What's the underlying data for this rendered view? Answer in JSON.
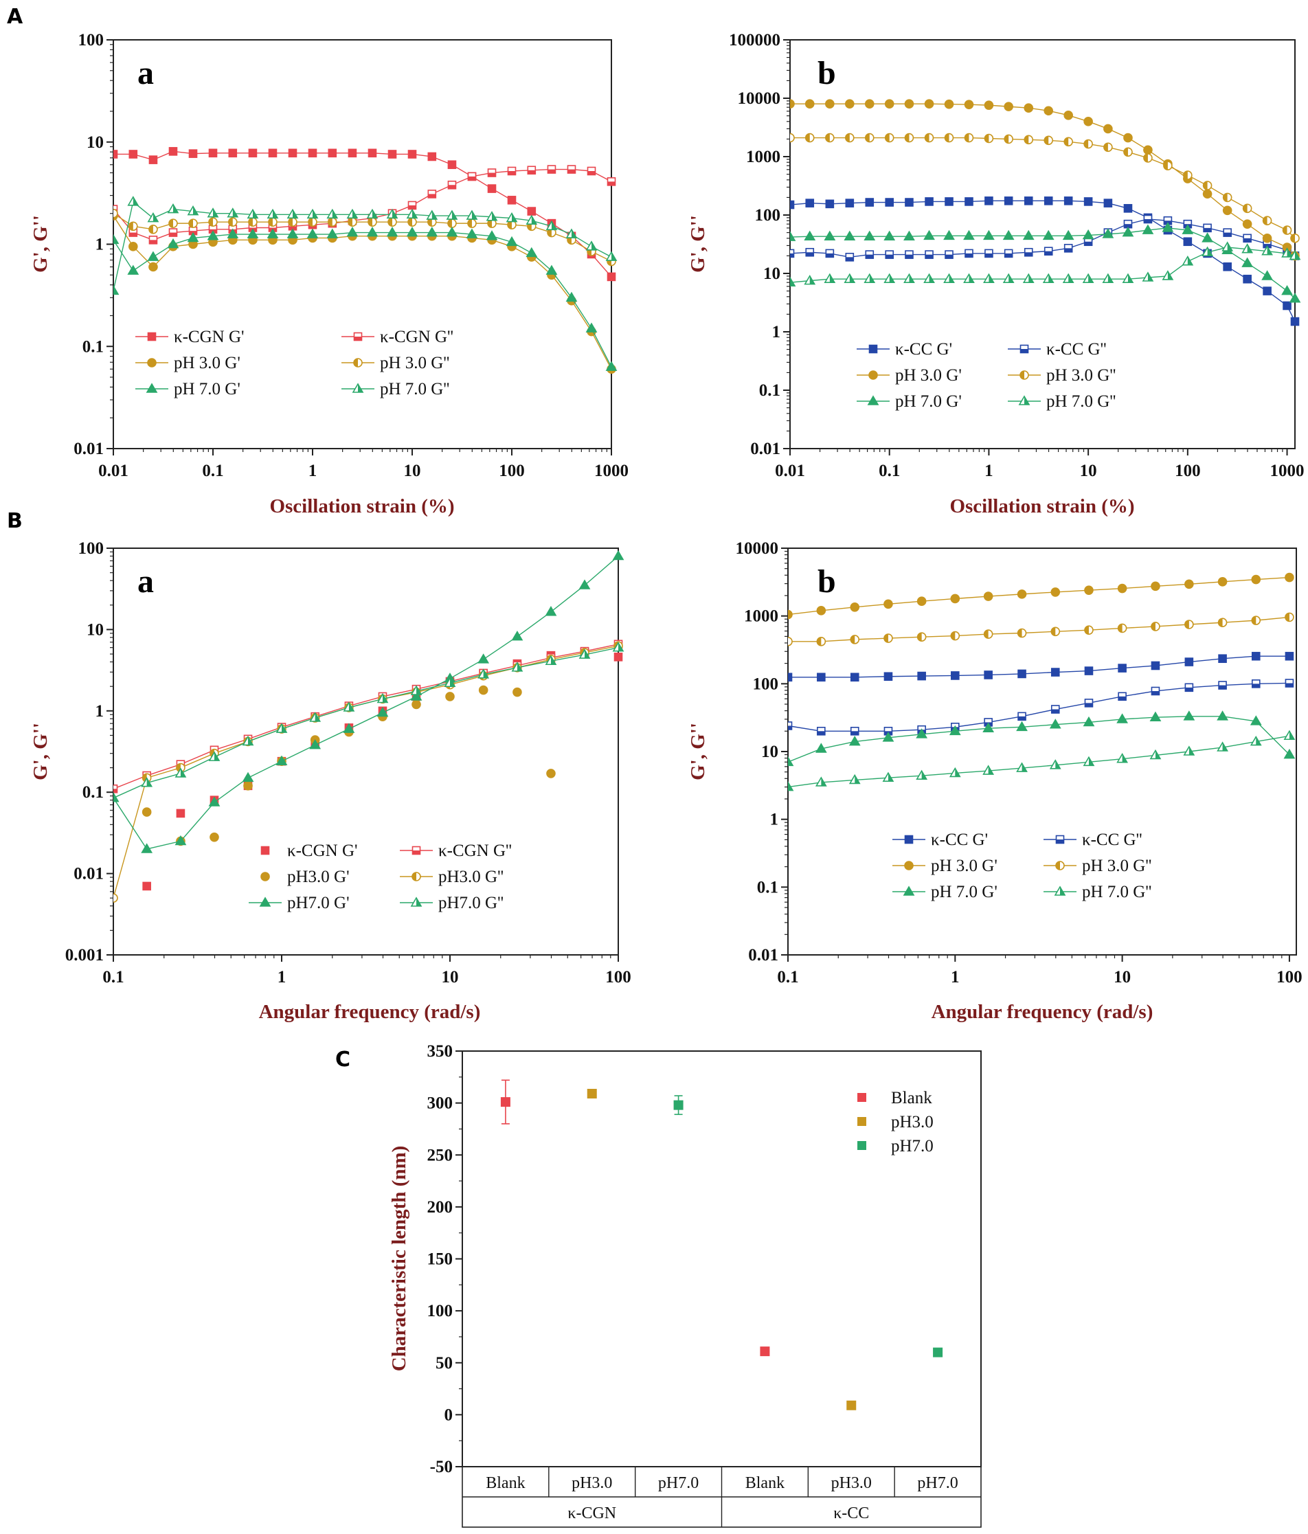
{
  "figure": {
    "labels": {
      "A": "A",
      "B": "B",
      "C": "C"
    },
    "sub_labels": {
      "a": "a",
      "b": "b"
    }
  },
  "colors": {
    "red": "#e8444c",
    "gold": "#c8961e",
    "green": "#2aa86a",
    "blue": "#2446a8",
    "axis_title": "#7b1d1d"
  },
  "chart_data": [
    {
      "id": "A_a",
      "type": "line",
      "panel": "A",
      "sub": "a",
      "xscale": "log",
      "yscale": "log",
      "xlim": [
        0.01,
        1000
      ],
      "ylim": [
        0.01,
        100
      ],
      "xticks": [
        0.01,
        0.1,
        1,
        10,
        100,
        1000
      ],
      "xtick_labels": [
        "0.01",
        "0.1",
        "1",
        "10",
        "100",
        "1000"
      ],
      "yticks": [
        0.01,
        0.1,
        1,
        10,
        100
      ],
      "ytick_labels": [
        "0.01",
        "0.1",
        "1",
        "10",
        "100"
      ],
      "xlabel": "Oscillation strain (%)",
      "ylabel": "G', G''",
      "legend_position": "bottom-center",
      "x": [
        0.01,
        0.0158,
        0.0251,
        0.0398,
        0.0631,
        0.1,
        0.158,
        0.251,
        0.398,
        0.631,
        1,
        1.58,
        2.51,
        3.98,
        6.31,
        10,
        15.8,
        25.1,
        39.8,
        63.1,
        100,
        158,
        251,
        398,
        631,
        1000
      ],
      "series": [
        {
          "name": "κ-CGN  G'",
          "color": "#e8444c",
          "marker": "square",
          "fill": "full",
          "values": [
            7.6,
            7.6,
            6.7,
            8.1,
            7.7,
            7.8,
            7.8,
            7.8,
            7.8,
            7.8,
            7.8,
            7.8,
            7.8,
            7.8,
            7.6,
            7.6,
            7.2,
            6.0,
            4.6,
            3.5,
            2.7,
            2.1,
            1.6,
            1.2,
            0.8,
            0.48
          ]
        },
        {
          "name": "κ-CGN  G''",
          "color": "#e8444c",
          "marker": "square",
          "fill": "half",
          "values": [
            2.2,
            1.3,
            1.1,
            1.3,
            1.35,
            1.4,
            1.4,
            1.45,
            1.45,
            1.5,
            1.55,
            1.6,
            1.7,
            1.8,
            2.0,
            2.4,
            3.1,
            3.8,
            4.6,
            5.0,
            5.2,
            5.3,
            5.4,
            5.4,
            5.2,
            4.1
          ]
        },
        {
          "name": "pH 3.0  G'",
          "color": "#c8961e",
          "marker": "circle",
          "fill": "full",
          "values": [
            1.9,
            0.95,
            0.6,
            0.95,
            1.0,
            1.05,
            1.1,
            1.1,
            1.1,
            1.1,
            1.15,
            1.15,
            1.2,
            1.2,
            1.2,
            1.2,
            1.2,
            1.2,
            1.15,
            1.1,
            0.95,
            0.75,
            0.5,
            0.28,
            0.14,
            0.06
          ]
        },
        {
          "name": "pH 3.0  G''",
          "color": "#c8961e",
          "marker": "circle",
          "fill": "half",
          "values": [
            2.0,
            1.5,
            1.4,
            1.6,
            1.6,
            1.65,
            1.65,
            1.65,
            1.65,
            1.65,
            1.65,
            1.65,
            1.65,
            1.65,
            1.65,
            1.65,
            1.65,
            1.6,
            1.6,
            1.6,
            1.55,
            1.5,
            1.3,
            1.1,
            0.85,
            0.68
          ]
        },
        {
          "name": "pH 7.0  G'",
          "color": "#2aa86a",
          "marker": "triangle",
          "fill": "full",
          "values": [
            1.1,
            0.55,
            0.75,
            1.0,
            1.15,
            1.2,
            1.25,
            1.25,
            1.25,
            1.25,
            1.25,
            1.25,
            1.3,
            1.3,
            1.3,
            1.3,
            1.3,
            1.3,
            1.25,
            1.2,
            1.05,
            0.82,
            0.55,
            0.3,
            0.15,
            0.063
          ]
        },
        {
          "name": "pH 7.0  G''",
          "color": "#2aa86a",
          "marker": "triangle",
          "fill": "half",
          "values": [
            0.35,
            2.6,
            1.8,
            2.2,
            2.1,
            2.0,
            2.0,
            1.95,
            1.95,
            1.95,
            1.95,
            1.95,
            1.95,
            1.95,
            1.95,
            1.95,
            1.9,
            1.9,
            1.9,
            1.85,
            1.8,
            1.7,
            1.5,
            1.25,
            0.95,
            0.75
          ]
        }
      ]
    },
    {
      "id": "A_b",
      "type": "line",
      "panel": "A",
      "sub": "b",
      "xscale": "log",
      "yscale": "log",
      "xlim": [
        0.01,
        1200
      ],
      "ylim": [
        0.01,
        100000
      ],
      "xticks": [
        0.01,
        0.1,
        1,
        10,
        100,
        1000
      ],
      "xtick_labels": [
        "0.01",
        "0.1",
        "1",
        "10",
        "100",
        "1000"
      ],
      "yticks": [
        0.01,
        0.1,
        1,
        10,
        100,
        1000,
        10000,
        100000
      ],
      "ytick_labels": [
        "0.01",
        "0.1",
        "1",
        "10",
        "100",
        "1000",
        "10000",
        "100000"
      ],
      "xlabel": "Oscillation strain (%)",
      "ylabel": "G', G''",
      "legend_position": "bottom-center",
      "x": [
        0.01,
        0.0158,
        0.0251,
        0.0398,
        0.0631,
        0.1,
        0.158,
        0.251,
        0.398,
        0.631,
        1,
        1.58,
        2.51,
        3.98,
        6.31,
        10,
        15.8,
        25.1,
        39.8,
        63.1,
        100,
        158,
        251,
        398,
        631,
        1000,
        1200
      ],
      "series": [
        {
          "name": "κ-CC  G'",
          "color": "#2446a8",
          "marker": "square",
          "fill": "full",
          "values": [
            150,
            160,
            155,
            160,
            165,
            165,
            165,
            170,
            170,
            170,
            175,
            175,
            175,
            175,
            175,
            170,
            160,
            130,
            90,
            55,
            35,
            22,
            13,
            8,
            5,
            2.8,
            1.5
          ]
        },
        {
          "name": "κ-CC  G''",
          "color": "#2446a8",
          "marker": "square",
          "fill": "half",
          "values": [
            22,
            23,
            22,
            19,
            21,
            21,
            21,
            21,
            21,
            22,
            22,
            22,
            23,
            24,
            27,
            35,
            50,
            70,
            85,
            80,
            70,
            60,
            50,
            40,
            32,
            25,
            20
          ]
        },
        {
          "name": "pH 3.0  G'",
          "color": "#c8961e",
          "marker": "circle",
          "fill": "full",
          "values": [
            8000,
            8000,
            8000,
            8000,
            8000,
            8000,
            8000,
            8000,
            7900,
            7800,
            7600,
            7200,
            6800,
            6100,
            5100,
            4000,
            3000,
            2100,
            1300,
            750,
            420,
            230,
            120,
            70,
            40,
            28,
            20
          ]
        },
        {
          "name": "pH 3.0  G''",
          "color": "#c8961e",
          "marker": "circle",
          "fill": "half",
          "values": [
            2100,
            2100,
            2100,
            2100,
            2100,
            2100,
            2100,
            2100,
            2100,
            2100,
            2050,
            2000,
            1950,
            1900,
            1800,
            1650,
            1450,
            1200,
            950,
            700,
            480,
            320,
            200,
            130,
            80,
            55,
            40
          ]
        },
        {
          "name": "pH 7.0  G'",
          "color": "#2aa86a",
          "marker": "triangle",
          "fill": "full",
          "values": [
            42,
            43,
            43,
            43,
            43,
            43,
            43,
            44,
            44,
            44,
            44,
            44,
            44,
            44,
            44,
            45,
            47,
            50,
            55,
            60,
            55,
            40,
            25,
            15,
            9,
            5,
            3.7
          ]
        },
        {
          "name": "pH 7.0  G''",
          "color": "#2aa86a",
          "marker": "triangle",
          "fill": "half",
          "values": [
            7,
            7.5,
            8,
            8,
            8,
            8,
            8,
            8,
            8,
            8,
            8,
            8,
            8,
            8,
            8,
            8,
            8,
            8,
            8.5,
            9,
            16,
            23,
            28,
            26,
            24,
            22,
            20
          ]
        }
      ]
    },
    {
      "id": "B_a",
      "type": "line",
      "panel": "B",
      "sub": "a",
      "xscale": "log",
      "yscale": "log",
      "xlim": [
        0.1,
        100
      ],
      "ylim": [
        0.001,
        100
      ],
      "xticks": [
        0.1,
        1,
        10,
        100
      ],
      "xtick_labels": [
        "0.1",
        "1",
        "10",
        "100"
      ],
      "yticks": [
        0.001,
        0.01,
        0.1,
        1,
        10,
        100
      ],
      "ytick_labels": [
        "0.001",
        "0.01",
        "0.1",
        "1",
        "10",
        "100"
      ],
      "xlabel": "Angular frequency (rad/s)",
      "ylabel": "G', G''",
      "legend_position": "bottom-center",
      "x": [
        0.1,
        0.158,
        0.251,
        0.398,
        0.631,
        1,
        1.58,
        2.51,
        3.98,
        6.31,
        10,
        15.8,
        25.1,
        39.8,
        63.1,
        100
      ],
      "series": [
        {
          "name": "κ-CGN G'",
          "color": "#e8444c",
          "marker": "square",
          "fill": "full",
          "line": false,
          "values": [
            null,
            0.007,
            0.055,
            0.08,
            0.12,
            0.24,
            0.4,
            0.62,
            1.0,
            1.5,
            2.2,
            2.9,
            3.8,
            4.8,
            5.3,
            4.6
          ]
        },
        {
          "name": "κ-CGN G''",
          "color": "#e8444c",
          "marker": "square",
          "fill": "half",
          "values": [
            0.11,
            0.16,
            0.22,
            0.33,
            0.45,
            0.63,
            0.85,
            1.15,
            1.5,
            1.85,
            2.3,
            2.9,
            3.6,
            4.5,
            5.4,
            6.6
          ]
        },
        {
          "name": "pH3.0 G'",
          "color": "#c8961e",
          "marker": "circle",
          "fill": "full",
          "line": false,
          "values": [
            null,
            0.057,
            0.025,
            0.028,
            0.12,
            0.24,
            0.44,
            0.55,
            0.85,
            1.2,
            1.5,
            1.8,
            1.7,
            0.17,
            null,
            null
          ]
        },
        {
          "name": "pH3.0 G''",
          "color": "#c8961e",
          "marker": "circle",
          "fill": "half",
          "values": [
            0.005,
            0.15,
            0.2,
            0.3,
            0.42,
            0.6,
            0.82,
            1.1,
            1.4,
            1.7,
            2.1,
            2.7,
            3.4,
            4.3,
            5.2,
            6.3
          ]
        },
        {
          "name": "pH7.0 G'",
          "color": "#2aa86a",
          "marker": "triangle",
          "fill": "full",
          "values": [
            0.085,
            0.02,
            0.025,
            0.075,
            0.15,
            0.24,
            0.38,
            0.6,
            0.95,
            1.5,
            2.5,
            4.3,
            8.2,
            16.5,
            35,
            80
          ]
        },
        {
          "name": "pH7.0 G''",
          "color": "#2aa86a",
          "marker": "triangle",
          "fill": "half",
          "values": [
            0.085,
            0.13,
            0.17,
            0.27,
            0.42,
            0.6,
            0.82,
            1.1,
            1.4,
            1.75,
            2.2,
            2.8,
            3.4,
            4.1,
            4.9,
            6.0
          ]
        }
      ]
    },
    {
      "id": "B_b",
      "type": "line",
      "panel": "B",
      "sub": "b",
      "xscale": "log",
      "yscale": "log",
      "xlim": [
        0.1,
        110
      ],
      "ylim": [
        0.01,
        10000
      ],
      "xticks": [
        0.1,
        1,
        10,
        100
      ],
      "xtick_labels": [
        "0.1",
        "1",
        "10",
        "100"
      ],
      "yticks": [
        0.01,
        0.1,
        1,
        10,
        100,
        1000,
        10000
      ],
      "ytick_labels": [
        "0.01",
        "0.1",
        "1",
        "10",
        "100",
        "1000",
        "10000"
      ],
      "xlabel": "Angular frequency (rad/s)",
      "ylabel": "G', G''",
      "legend_position": "bottom-center",
      "x": [
        0.1,
        0.158,
        0.251,
        0.398,
        0.631,
        1,
        1.58,
        2.51,
        3.98,
        6.31,
        10,
        15.8,
        25.1,
        39.8,
        63.1,
        100
      ],
      "series": [
        {
          "name": "κ-CC  G'",
          "color": "#2446a8",
          "marker": "square",
          "fill": "full",
          "values": [
            125,
            125,
            125,
            128,
            130,
            132,
            135,
            140,
            148,
            155,
            170,
            185,
            210,
            235,
            255,
            255
          ]
        },
        {
          "name": "κ-CC  G''",
          "color": "#2446a8",
          "marker": "square",
          "fill": "half",
          "values": [
            24,
            20,
            20,
            20,
            21,
            23,
            27,
            33,
            42,
            52,
            65,
            78,
            88,
            95,
            100,
            102
          ]
        },
        {
          "name": "pH 3.0  G'",
          "color": "#c8961e",
          "marker": "circle",
          "fill": "full",
          "values": [
            1050,
            1200,
            1350,
            1500,
            1650,
            1800,
            1950,
            2100,
            2250,
            2400,
            2550,
            2750,
            2950,
            3200,
            3450,
            3700
          ]
        },
        {
          "name": "pH 3.0  G''",
          "color": "#c8961e",
          "marker": "circle",
          "fill": "half",
          "values": [
            420,
            420,
            450,
            470,
            490,
            510,
            540,
            560,
            590,
            620,
            660,
            700,
            750,
            800,
            860,
            960
          ]
        },
        {
          "name": "pH 7.0  G'",
          "color": "#2aa86a",
          "marker": "triangle",
          "fill": "full",
          "values": [
            7,
            11,
            14,
            16,
            18,
            20,
            22,
            23,
            25,
            27,
            30,
            32,
            33,
            33,
            28,
            9
          ]
        },
        {
          "name": "pH 7.0  G''",
          "color": "#2aa86a",
          "marker": "triangle",
          "fill": "half",
          "values": [
            3,
            3.5,
            3.8,
            4.1,
            4.4,
            4.8,
            5.2,
            5.7,
            6.3,
            7.0,
            7.8,
            8.8,
            10,
            11.5,
            14,
            17
          ]
        }
      ]
    },
    {
      "id": "C",
      "type": "scatter",
      "panel": "C",
      "ylim": [
        -50,
        350
      ],
      "yticks": [
        -50,
        0,
        50,
        100,
        150,
        200,
        250,
        300,
        350
      ],
      "ytick_labels": [
        "-50",
        "0",
        "50",
        "100",
        "150",
        "200",
        "250",
        "300",
        "350"
      ],
      "ylabel": "Characteristic length (nm)",
      "categories": [
        "Blank",
        "pH3.0",
        "pH7.0",
        "Blank",
        "pH3.0",
        "pH7.0"
      ],
      "groups": [
        "κ-CGN",
        "κ-CGN",
        "κ-CGN",
        "κ-CC",
        "κ-CC",
        "κ-CC"
      ],
      "group_labels": [
        "κ-CGN",
        "κ-CC"
      ],
      "legend_position": "top-right",
      "series": [
        {
          "name": "Blank",
          "color": "#e8444c",
          "points": [
            {
              "cat": 0,
              "value": 301,
              "err": 21
            },
            {
              "cat": 3,
              "value": 61,
              "err": 0
            }
          ]
        },
        {
          "name": "pH3.0",
          "color": "#c8961e",
          "points": [
            {
              "cat": 1,
              "value": 309,
              "err": 0
            },
            {
              "cat": 4,
              "value": 9,
              "err": 0
            }
          ]
        },
        {
          "name": "pH7.0",
          "color": "#2aa86a",
          "points": [
            {
              "cat": 2,
              "value": 298,
              "err": 9
            },
            {
              "cat": 5,
              "value": 60,
              "err": 0
            }
          ]
        }
      ]
    }
  ]
}
